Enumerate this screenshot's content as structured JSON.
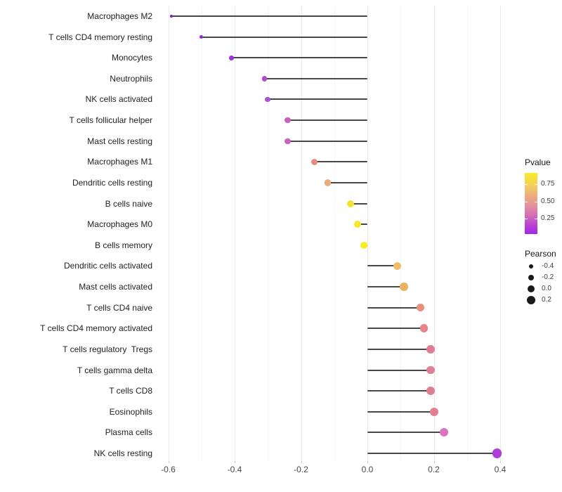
{
  "chart_data": {
    "type": "scatter",
    "variant": "lollipop",
    "title": "",
    "xlabel": "",
    "ylabel": "",
    "grid": "vertical-only, minor 0.1 / major 0.2, light gray on white",
    "xlim": [
      -0.616,
      0.421
    ],
    "x_tick_values": [
      -0.6,
      -0.4,
      -0.2,
      0.0,
      0.2,
      0.4
    ],
    "x_tick_labels": [
      "-0.6",
      "-0.4",
      "-0.2",
      "0.0",
      "0.2",
      "0.4"
    ],
    "points": [
      {
        "label": "Macrophages M2",
        "pearson": -0.59,
        "pvalue": 0.01,
        "color": "#8022c6"
      },
      {
        "label": "T cells CD4 memory resting",
        "pearson": -0.5,
        "pvalue": 0.04,
        "color": "#8f2bd4"
      },
      {
        "label": "Monocytes",
        "pearson": -0.41,
        "pvalue": 0.08,
        "color": "#9c35da"
      },
      {
        "label": "Neutrophils",
        "pearson": -0.31,
        "pvalue": 0.16,
        "color": "#ab4bd5"
      },
      {
        "label": "NK cells activated",
        "pearson": -0.3,
        "pvalue": 0.17,
        "color": "#af4ed6"
      },
      {
        "label": "T cells follicular helper",
        "pearson": -0.24,
        "pvalue": 0.28,
        "color": "#c763bb"
      },
      {
        "label": "Mast cells resting",
        "pearson": -0.24,
        "pvalue": 0.29,
        "color": "#c965b9"
      },
      {
        "label": "Macrophages M1",
        "pearson": -0.16,
        "pvalue": 0.5,
        "color": "#e18b82"
      },
      {
        "label": "Dendritic cells resting",
        "pearson": -0.12,
        "pvalue": 0.63,
        "color": "#eaab76"
      },
      {
        "label": "B cells naive",
        "pearson": -0.05,
        "pvalue": 0.84,
        "color": "#f6e12e"
      },
      {
        "label": "Macrophages M0",
        "pearson": -0.03,
        "pvalue": 0.89,
        "color": "#f8e926"
      },
      {
        "label": "B cells memory",
        "pearson": -0.01,
        "pvalue": 0.92,
        "color": "#faee1e"
      },
      {
        "label": "Dendritic cells activated",
        "pearson": 0.09,
        "pvalue": 0.71,
        "color": "#f0be68"
      },
      {
        "label": "Mast cells activated",
        "pearson": 0.11,
        "pvalue": 0.68,
        "color": "#eeb264"
      },
      {
        "label": "T cells CD4 naive",
        "pearson": 0.16,
        "pvalue": 0.56,
        "color": "#e8907c"
      },
      {
        "label": "T cells CD4 memory activated",
        "pearson": 0.17,
        "pvalue": 0.52,
        "color": "#e7858b"
      },
      {
        "label": "T cells regulatory  Tregs",
        "pearson": 0.19,
        "pvalue": 0.47,
        "color": "#e07d93"
      },
      {
        "label": "T cells gamma delta",
        "pearson": 0.19,
        "pvalue": 0.47,
        "color": "#e07e95"
      },
      {
        "label": "T cells CD8",
        "pearson": 0.19,
        "pvalue": 0.47,
        "color": "#e17e92"
      },
      {
        "label": "Eosinophils",
        "pearson": 0.2,
        "pvalue": 0.46,
        "color": "#e27f90"
      },
      {
        "label": "Plasma cells",
        "pearson": 0.23,
        "pvalue": 0.32,
        "color": "#db74be"
      },
      {
        "label": "NK cells resting",
        "pearson": 0.39,
        "pvalue": 0.07,
        "color": "#af3cdb"
      }
    ],
    "legend_color": {
      "title": "Pvalue",
      "position": "right",
      "range": [
        0.02,
        0.92
      ],
      "tick_values": [
        0.75,
        0.5,
        0.25
      ],
      "tick_labels": [
        "0.75",
        "0.50",
        "0.25"
      ],
      "gradient_top_to_bottom": [
        "#f9ec27",
        "#f5cf5b",
        "#eda883",
        "#e28ba2",
        "#d167bc",
        "#b33bd9",
        "#a327e2"
      ]
    },
    "legend_size": {
      "title": "Pearson",
      "position": "right",
      "items": [
        {
          "label": "-0.4",
          "value": -0.4
        },
        {
          "label": "-0.2",
          "value": -0.2
        },
        {
          "label": "0.0",
          "value": 0.0
        },
        {
          "label": "0.2",
          "value": 0.2
        }
      ]
    }
  }
}
